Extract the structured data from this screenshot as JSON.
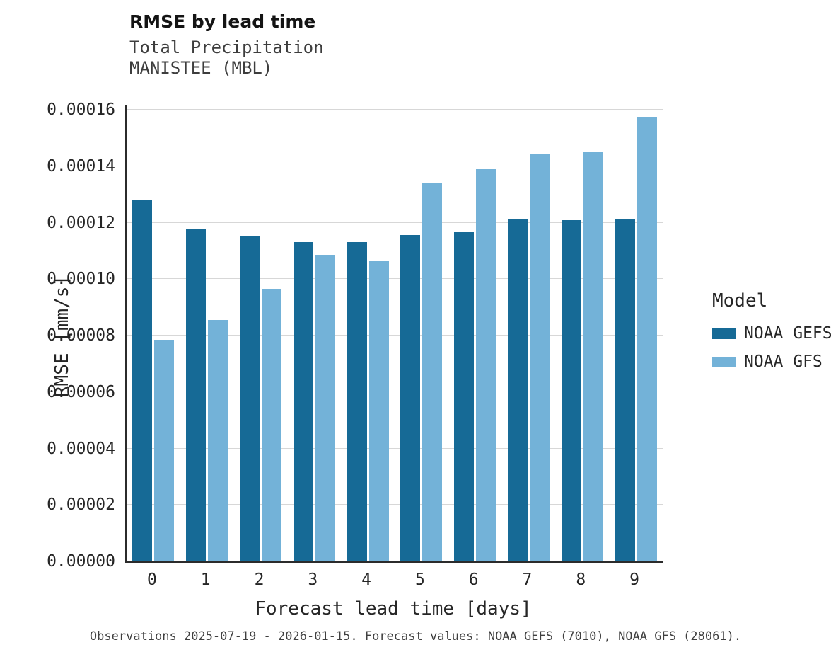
{
  "header": {
    "title": "RMSE by lead time",
    "subtitle1": "Total Precipitation",
    "subtitle2": "MANISTEE (MBL)"
  },
  "chart_data": {
    "type": "bar",
    "title": "RMSE by lead time",
    "subtitle1": "Total Precipitation",
    "subtitle2": "MANISTEE (MBL)",
    "categories": [
      "0",
      "1",
      "2",
      "3",
      "4",
      "5",
      "6",
      "7",
      "8",
      "9"
    ],
    "series": [
      {
        "name": "NOAA GEFS",
        "color": "#166a96",
        "values": [
          0.000128,
          0.000118,
          0.000115,
          0.000113,
          0.000113,
          0.0001155,
          0.000117,
          0.0001215,
          0.000121,
          0.0001215
        ]
      },
      {
        "name": "NOAA GFS",
        "color": "#73b2d8",
        "values": [
          7.85e-05,
          8.55e-05,
          9.65e-05,
          0.0001085,
          0.0001065,
          0.000134,
          0.000139,
          0.0001445,
          0.000145,
          0.0001575
        ]
      }
    ],
    "xlabel": "Forecast lead time [days]",
    "ylabel": "RMSE [mm/s]",
    "ylim": [
      0,
      0.00016
    ],
    "ytick_step": 2e-05,
    "ytick_labels": [
      "0.00000",
      "0.00002",
      "0.00004",
      "0.00006",
      "0.00008",
      "0.00010",
      "0.00012",
      "0.00014",
      "0.00016"
    ],
    "grid": "horizontal",
    "legend_title": "Model",
    "legend_position": "right"
  },
  "caption": "Observations 2025-07-19 - 2026-01-15. Forecast values: NOAA GEFS (7010), NOAA GFS (28061)."
}
